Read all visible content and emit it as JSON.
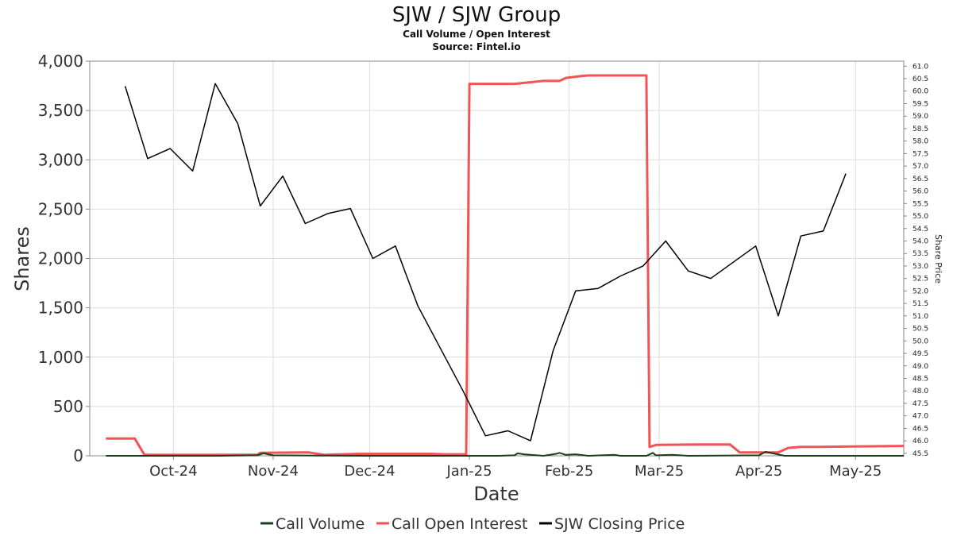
{
  "chart_data": {
    "type": "line",
    "title": "SJW / SJW Group",
    "subtitles": [
      "Call Volume / Open Interest",
      "Source: Fintel.io"
    ],
    "xlabel": "Date",
    "ylabel": "Shares",
    "y2label": "Share Price",
    "x_range": [
      "2024-09-05",
      "2025-05-16"
    ],
    "x_ticks": [
      {
        "date": "2024-10-01",
        "label": "Oct-24"
      },
      {
        "date": "2024-11-01",
        "label": "Nov-24"
      },
      {
        "date": "2024-12-01",
        "label": "Dec-24"
      },
      {
        "date": "2025-01-01",
        "label": "Jan-25"
      },
      {
        "date": "2025-02-01",
        "label": "Feb-25"
      },
      {
        "date": "2025-03-01",
        "label": "Mar-25"
      },
      {
        "date": "2025-04-01",
        "label": "Apr-25"
      },
      {
        "date": "2025-05-01",
        "label": "May-25"
      }
    ],
    "ylim": [
      0,
      4000
    ],
    "y_ticks": [
      0,
      500,
      1000,
      1500,
      2000,
      2500,
      3000,
      3500,
      4000
    ],
    "y_tick_labels": [
      "0",
      "500",
      "1,000",
      "1,500",
      "2,000",
      "2,500",
      "3,000",
      "3,500",
      "4,000"
    ],
    "y2lim": [
      45.4,
      61.2
    ],
    "y2_ticks": [
      45.5,
      46.0,
      46.5,
      47.0,
      47.5,
      48.0,
      48.5,
      49.0,
      49.5,
      50.0,
      50.5,
      51.0,
      51.5,
      52.0,
      52.5,
      53.0,
      53.5,
      54.0,
      54.5,
      55.0,
      55.5,
      56.0,
      56.5,
      57.0,
      57.5,
      58.0,
      58.5,
      59.0,
      59.5,
      60.0,
      60.5,
      61.0
    ],
    "grid": true,
    "legend_position": "bottom",
    "series": [
      {
        "name": "Call Volume",
        "color": "#1b3d1b",
        "axis": "left",
        "points": [
          [
            "2024-09-10",
            0
          ],
          [
            "2024-10-15",
            0
          ],
          [
            "2024-10-27",
            5
          ],
          [
            "2024-10-29",
            25
          ],
          [
            "2024-11-01",
            5
          ],
          [
            "2024-12-01",
            0
          ],
          [
            "2025-01-10",
            0
          ],
          [
            "2025-01-15",
            5
          ],
          [
            "2025-01-16",
            25
          ],
          [
            "2025-01-18",
            15
          ],
          [
            "2025-01-22",
            5
          ],
          [
            "2025-01-24",
            0
          ],
          [
            "2025-01-28",
            20
          ],
          [
            "2025-01-29",
            30
          ],
          [
            "2025-01-31",
            10
          ],
          [
            "2025-02-03",
            15
          ],
          [
            "2025-02-07",
            0
          ],
          [
            "2025-02-15",
            10
          ],
          [
            "2025-02-17",
            0
          ],
          [
            "2025-02-25",
            0
          ],
          [
            "2025-02-27",
            30
          ],
          [
            "2025-02-28",
            5
          ],
          [
            "2025-03-05",
            10
          ],
          [
            "2025-03-10",
            0
          ],
          [
            "2025-04-01",
            5
          ],
          [
            "2025-04-03",
            40
          ],
          [
            "2025-04-06",
            20
          ],
          [
            "2025-04-09",
            0
          ],
          [
            "2025-05-16",
            0
          ]
        ]
      },
      {
        "name": "Call Open Interest",
        "color": "#f05454",
        "axis": "left",
        "points": [
          [
            "2024-09-10",
            175
          ],
          [
            "2024-09-19",
            175
          ],
          [
            "2024-09-22",
            10
          ],
          [
            "2024-10-27",
            10
          ],
          [
            "2024-10-28",
            30
          ],
          [
            "2024-11-12",
            35
          ],
          [
            "2024-11-17",
            10
          ],
          [
            "2024-11-28",
            20
          ],
          [
            "2024-12-20",
            20
          ],
          [
            "2024-12-24",
            15
          ],
          [
            "2024-12-31",
            15
          ],
          [
            "2025-01-01",
            3770
          ],
          [
            "2025-01-15",
            3770
          ],
          [
            "2025-01-21",
            3790
          ],
          [
            "2025-01-24",
            3800
          ],
          [
            "2025-01-29",
            3800
          ],
          [
            "2025-01-31",
            3830
          ],
          [
            "2025-02-05",
            3850
          ],
          [
            "2025-02-07",
            3855
          ],
          [
            "2025-02-12",
            3855
          ],
          [
            "2025-02-25",
            3855
          ],
          [
            "2025-02-26",
            90
          ],
          [
            "2025-02-28",
            110
          ],
          [
            "2025-03-13",
            115
          ],
          [
            "2025-03-23",
            115
          ],
          [
            "2025-03-26",
            35
          ],
          [
            "2025-04-01",
            35
          ],
          [
            "2025-04-07",
            35
          ],
          [
            "2025-04-10",
            80
          ],
          [
            "2025-04-14",
            90
          ],
          [
            "2025-04-20",
            90
          ],
          [
            "2025-04-30",
            95
          ],
          [
            "2025-05-16",
            100
          ]
        ]
      },
      {
        "name": "SJW Closing Price",
        "color": "#000000",
        "axis": "right",
        "points": [
          [
            "2024-09-16",
            60.2
          ],
          [
            "2024-09-23",
            57.3
          ],
          [
            "2024-09-30",
            57.7
          ],
          [
            "2024-10-07",
            56.8
          ],
          [
            "2024-10-14",
            60.3
          ],
          [
            "2024-10-21",
            58.7
          ],
          [
            "2024-10-28",
            55.4
          ],
          [
            "2024-11-04",
            56.6
          ],
          [
            "2024-11-11",
            54.7
          ],
          [
            "2024-11-18",
            55.1
          ],
          [
            "2024-11-25",
            55.3
          ],
          [
            "2024-12-02",
            53.3
          ],
          [
            "2024-12-09",
            53.8
          ],
          [
            "2024-12-16",
            51.4
          ],
          [
            "2024-12-30",
            48.0
          ],
          [
            "2025-01-06",
            46.2
          ],
          [
            "2025-01-13",
            46.4
          ],
          [
            "2025-01-20",
            46.0
          ],
          [
            "2025-01-27",
            49.6
          ],
          [
            "2025-02-03",
            52.0
          ],
          [
            "2025-02-10",
            52.1
          ],
          [
            "2025-02-17",
            52.6
          ],
          [
            "2025-02-24",
            53.0
          ],
          [
            "2025-03-03",
            54.0
          ],
          [
            "2025-03-10",
            52.8
          ],
          [
            "2025-03-17",
            52.5
          ],
          [
            "2025-03-31",
            53.8
          ],
          [
            "2025-04-07",
            51.0
          ],
          [
            "2025-04-14",
            54.2
          ],
          [
            "2025-04-21",
            54.4
          ],
          [
            "2025-04-28",
            56.7
          ]
        ]
      }
    ]
  }
}
